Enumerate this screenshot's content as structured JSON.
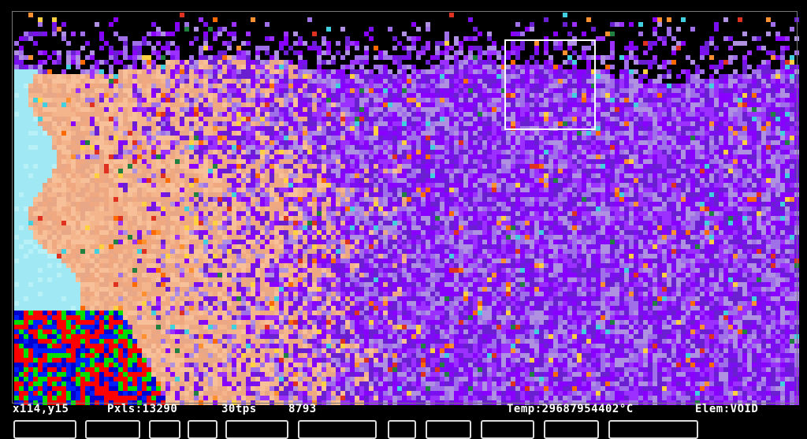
{
  "status": {
    "coords": "x114,y15",
    "pixels": "Pxls:13290",
    "tps": "30tps",
    "frame": "8793",
    "temp": "Temp:29687954402°C",
    "element": "Elem:VOID"
  }
}
